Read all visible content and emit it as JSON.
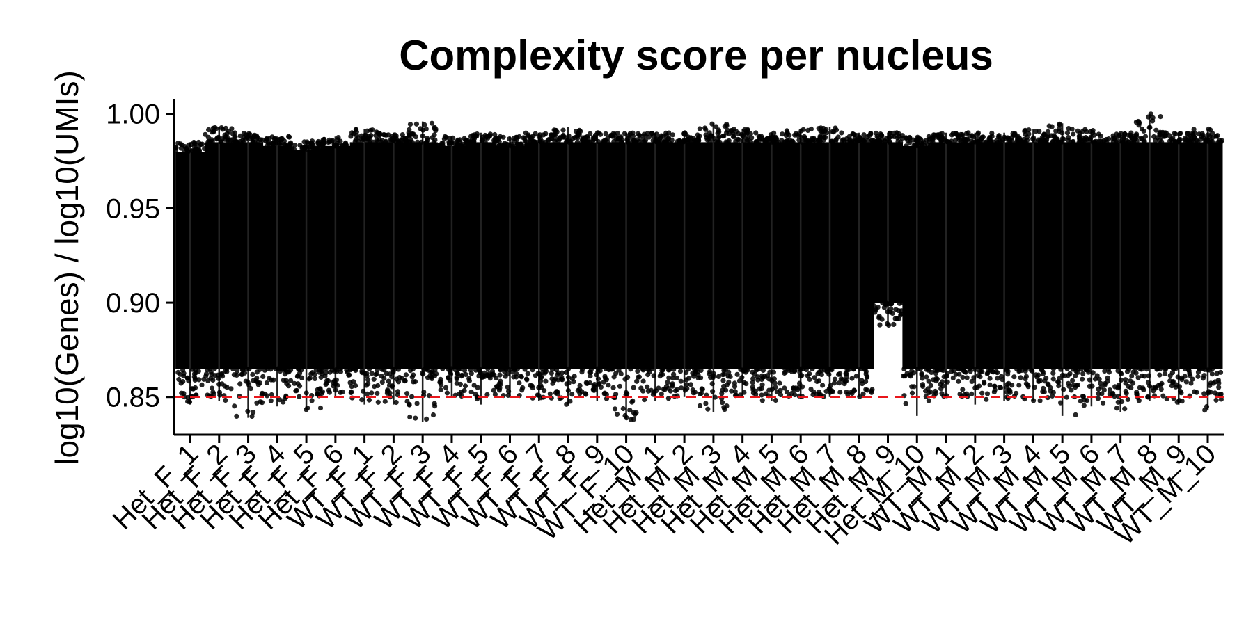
{
  "chart_data": {
    "type": "scatter",
    "title": "Complexity score per nucleus",
    "xlabel": "",
    "ylabel": "log10(Genes) / log10(UMIs)",
    "ylim": [
      0.83,
      1.008
    ],
    "yticks": [
      "0.85",
      "0.90",
      "0.95",
      "1.00"
    ],
    "ytick_values": [
      0.85,
      0.9,
      0.95,
      1.0
    ],
    "threshold": {
      "value": 0.85,
      "color": "#e8161b",
      "style": "dashed"
    },
    "grid": false,
    "legend": "none",
    "categories": [
      "Het_F_1",
      "Het_F_2",
      "Het_F_3",
      "Het_F_4",
      "Het_F_5",
      "Het_F_6",
      "WT_F_1",
      "WT_F_2",
      "WT_F_3",
      "WT_F_4",
      "WT_F_5",
      "WT_F_6",
      "WT_F_7",
      "WT_F_8",
      "WT_F_9",
      "WT_F_10",
      "Het_M_1",
      "Het_M_2",
      "Het_M_3",
      "Het_M_4",
      "Het_M_5",
      "Het_M_6",
      "Het_M_7",
      "Het_M_8",
      "Het_M_9",
      "Het_M_10",
      "WT_M_1",
      "WT_M_2",
      "WT_M_3",
      "WT_M_4",
      "WT_M_5",
      "WT_M_6",
      "WT_M_7",
      "WT_M_8",
      "WT_M_9",
      "WT_M_10"
    ],
    "series": [
      {
        "points_color": "#000000",
        "box_max": [
          0.985,
          0.993,
          0.99,
          0.988,
          0.986,
          0.988,
          0.992,
          0.99,
          0.996,
          0.988,
          0.99,
          0.988,
          0.99,
          0.993,
          0.99,
          0.99,
          0.99,
          0.99,
          0.995,
          0.992,
          0.99,
          0.992,
          0.993,
          0.99,
          0.99,
          0.988,
          0.99,
          0.99,
          0.99,
          0.992,
          0.995,
          0.992,
          0.99,
          1.0,
          0.99,
          0.992
        ],
        "box_min": [
          0.846,
          0.848,
          0.839,
          0.845,
          0.843,
          0.85,
          0.846,
          0.846,
          0.837,
          0.85,
          0.846,
          0.85,
          0.848,
          0.846,
          0.848,
          0.838,
          0.848,
          0.85,
          0.842,
          0.85,
          0.848,
          0.849,
          0.85,
          0.85,
          0.888,
          0.84,
          0.85,
          0.846,
          0.848,
          0.848,
          0.84,
          0.845,
          0.842,
          0.848,
          0.846,
          0.843
        ]
      }
    ]
  }
}
